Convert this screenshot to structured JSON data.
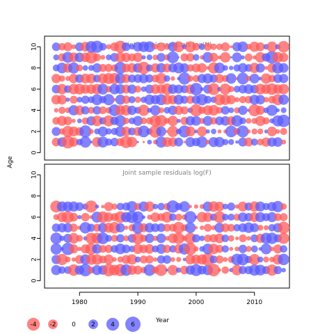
{
  "chart_data": [
    {
      "type": "scatter",
      "title": "Joint sample residuals log(N)",
      "xlabel": "Year",
      "ylabel": "Age",
      "xlim": [
        1974,
        2016
      ],
      "ylim": [
        -0.7,
        11
      ],
      "xticks": [
        1980,
        1990,
        2000,
        2010
      ],
      "yticks": [
        0,
        2,
        4,
        6,
        8,
        10
      ],
      "x_years": [
        1976,
        2015
      ],
      "ages": [
        1,
        10
      ],
      "marker": "bubble area by residual; red negative, blue positive",
      "grid": false
    },
    {
      "type": "scatter",
      "title": "Joint sample residuals log(F)",
      "xlabel": "Year",
      "ylabel": "Age",
      "xlim": [
        1974,
        2016
      ],
      "ylim": [
        -0.7,
        11
      ],
      "xticks": [
        1980,
        1990,
        2000,
        2010
      ],
      "yticks": [
        0,
        2,
        4,
        6,
        8,
        10
      ],
      "x_years": [
        1976,
        2015
      ],
      "ages": [
        1,
        7
      ],
      "marker": "bubble area by residual; red negative, blue positive",
      "grid": false
    }
  ],
  "legend": {
    "items": [
      {
        "label": "-4",
        "value": -4
      },
      {
        "label": "-2",
        "value": -2
      },
      {
        "label": "0",
        "value": 0
      },
      {
        "label": "2",
        "value": 2
      },
      {
        "label": "4",
        "value": 4
      },
      {
        "label": "6",
        "value": 6
      }
    ],
    "title": "Year"
  },
  "colors": {
    "negative": "#ff5a5a",
    "positive": "#5a5aff",
    "title_text": "#808080",
    "axis": "#000000"
  }
}
